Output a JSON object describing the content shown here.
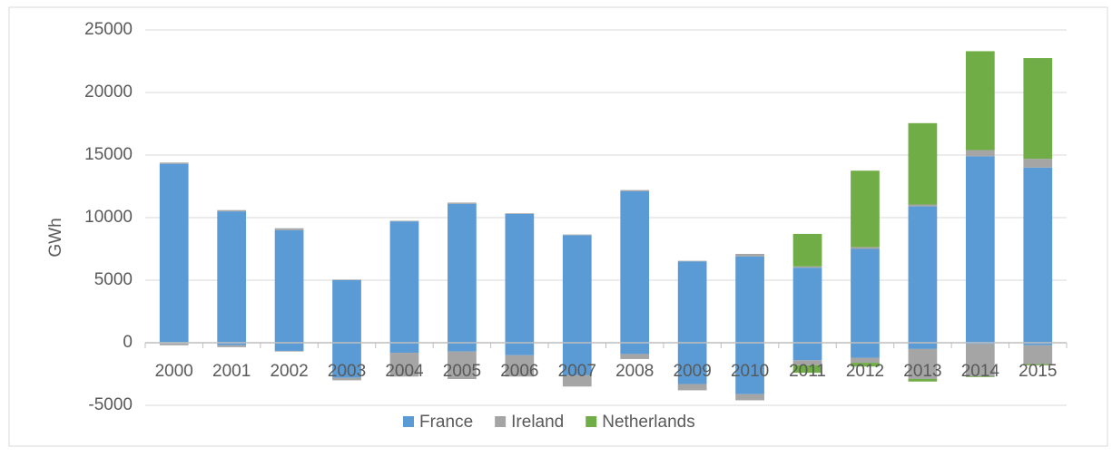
{
  "chart_data": {
    "type": "stacked_bar",
    "y_label": "GWh",
    "categories": [
      "2000",
      "2001",
      "2002",
      "2003",
      "2004",
      "2005",
      "2006",
      "2007",
      "2008",
      "2009",
      "2010",
      "2011",
      "2012",
      "2013",
      "2014",
      "2015"
    ],
    "series": [
      {
        "name": "France",
        "color": "#5b9bd5",
        "values": [
          14300,
          10500,
          9000,
          5000,
          9700,
          11100,
          10300,
          8600,
          12100,
          6500,
          6900,
          6000,
          7500,
          10900,
          14900,
          14000
        ]
      },
      {
        "name": "Ireland",
        "color": "#a5a5a5",
        "values": [
          100,
          100,
          150,
          50,
          50,
          100,
          50,
          50,
          100,
          50,
          200,
          100,
          150,
          150,
          500,
          700
        ]
      },
      {
        "name": "Netherlands",
        "color": "#70ad47",
        "values": [
          0,
          0,
          0,
          0,
          0,
          0,
          0,
          0,
          0,
          0,
          0,
          2600,
          6100,
          6500,
          7900,
          8050
        ]
      },
      {
        "color": "#5b9bd5",
        "values": [
          -50,
          -200,
          -650,
          -2800,
          -800,
          -700,
          -1000,
          -2600,
          -900,
          -3300,
          -4100,
          -1400,
          -1200,
          -500,
          -100,
          -200
        ]
      },
      {
        "color": "#a5a5a5",
        "values": [
          -150,
          -150,
          -50,
          -200,
          -1900,
          -2200,
          -1700,
          -900,
          -400,
          -500,
          -500,
          -400,
          -400,
          -2400,
          -2600,
          -1500
        ]
      },
      {
        "color": "#70ad47",
        "values": [
          0,
          0,
          0,
          0,
          0,
          0,
          0,
          0,
          0,
          0,
          0,
          -600,
          -300,
          -200,
          -50,
          -100
        ]
      }
    ],
    "ylim": [
      -5000,
      25000
    ],
    "yticks": [
      -5000,
      0,
      5000,
      10000,
      15000,
      20000,
      25000
    ],
    "grid": true
  }
}
